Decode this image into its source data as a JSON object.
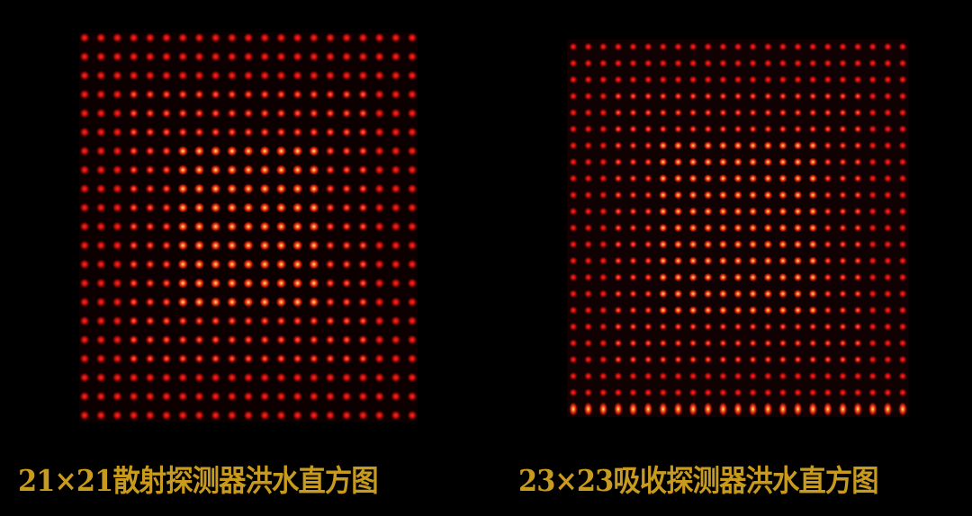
{
  "panels": [
    {
      "caption": "21×21散射探测器洪水直方图",
      "grid": 21
    },
    {
      "caption": "23×23吸收探测器洪水直方图",
      "grid": 23
    }
  ],
  "colors": {
    "background": "#000000",
    "caption": "#c89a1e",
    "spot": "#ff2010",
    "spot_core": "#ffd060"
  }
}
